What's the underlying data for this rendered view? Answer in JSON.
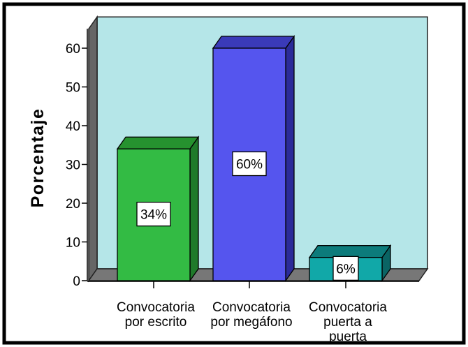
{
  "chart_data": {
    "type": "bar",
    "title": "",
    "xlabel": "",
    "ylabel": "Porcentaje",
    "ylim": [
      0,
      65
    ],
    "yticks": [
      0,
      10,
      20,
      30,
      40,
      50,
      60
    ],
    "categories": [
      [
        "Convocatoria",
        "por escrito"
      ],
      [
        "Convocatoria",
        "por megáfono"
      ],
      [
        "Convocatoria",
        "puerta a",
        "puerta"
      ]
    ],
    "values": [
      34,
      60,
      6
    ],
    "data_labels": [
      "34%",
      "60%",
      "6%"
    ],
    "bar_colors": [
      {
        "front": "#33bb44",
        "side": "#1f7a2a",
        "top": "#26922f"
      },
      {
        "front": "#5555ee",
        "side": "#2b2b99",
        "top": "#3a3ab8"
      },
      {
        "front": "#11a8a8",
        "side": "#0a6464",
        "top": "#0c7b7b"
      }
    ],
    "plot_background": "#b5e6e8",
    "grid": false,
    "legend": "none",
    "style": "3d"
  }
}
